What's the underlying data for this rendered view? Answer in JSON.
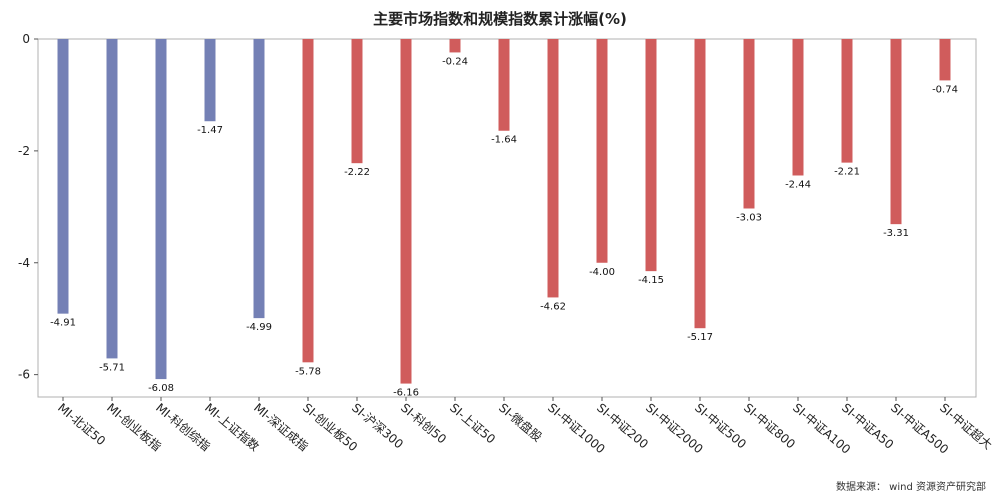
{
  "chart_data": {
    "type": "bar",
    "title": "主要市场指数和规模指数累计涨幅(%)",
    "xlabel": "",
    "ylabel": "",
    "ylim": [
      -6.4,
      0
    ],
    "yticks": [
      0,
      -2,
      -4,
      -6
    ],
    "categories": [
      "MI-北证50",
      "MI-创业板指",
      "MI-科创综指",
      "MI-上证指数",
      "MI-深证成指",
      "SI-创业板50",
      "SI-沪深300",
      "SI-科创50",
      "SI-上证50",
      "SI-微盘股",
      "SI-中证1000",
      "SI-中证200",
      "SI-中证2000",
      "SI-中证500",
      "SI-中证800",
      "SI-中证A100",
      "SI-中证A50",
      "SI-中证A500",
      "SI-中证超大"
    ],
    "values": [
      -4.91,
      -5.71,
      -6.08,
      -1.47,
      -4.99,
      -5.78,
      -2.22,
      -6.16,
      -0.24,
      -1.64,
      -4.62,
      -4.0,
      -4.15,
      -5.17,
      -3.03,
      -2.44,
      -2.21,
      -3.31,
      -0.74
    ],
    "value_labels": [
      "-4.91",
      "-5.71",
      "-6.08",
      "-1.47",
      "-4.99",
      "-5.78",
      "-2.22",
      "-6.16",
      "-0.24",
      "-1.64",
      "-4.62",
      "-4.00",
      "-4.15",
      "-5.17",
      "-3.03",
      "-2.44",
      "-2.21",
      "-3.31",
      "-0.74"
    ],
    "groups": [
      "MI",
      "MI",
      "MI",
      "MI",
      "MI",
      "SI",
      "SI",
      "SI",
      "SI",
      "SI",
      "SI",
      "SI",
      "SI",
      "SI",
      "SI",
      "SI",
      "SI",
      "SI",
      "SI"
    ],
    "colors": {
      "MI": "#7480b5",
      "SI": "#d05c5c"
    }
  },
  "source_note": "数据来源： wind  资源资产研究部"
}
